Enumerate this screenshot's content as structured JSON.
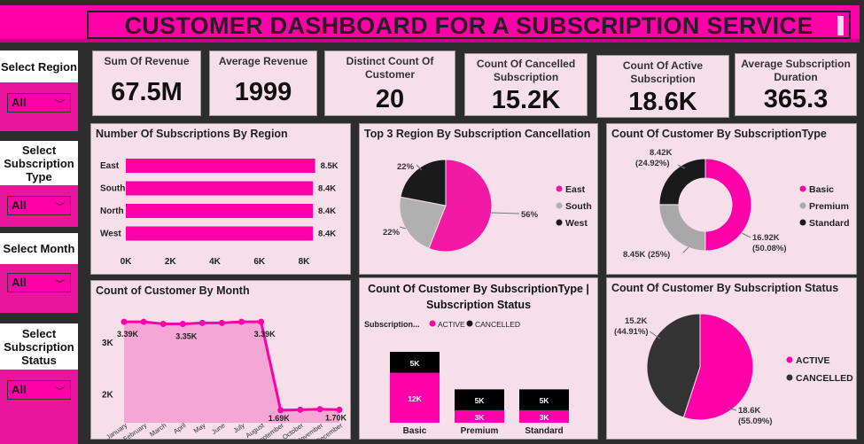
{
  "title": "CUSTOMER DASHBOARD FOR A SUBSCRIPTION SERVICE",
  "colors": {
    "pink": "#ff00a8",
    "gray": "#b0b0b0",
    "black": "#1a1a1a",
    "panel": "#f6dfe9",
    "dark": "#2d2d2d"
  },
  "slicers": [
    {
      "label": "Select Region",
      "value": "All"
    },
    {
      "label": "Select Subscription Type",
      "value": "All"
    },
    {
      "label": "Select Month",
      "value": "All"
    },
    {
      "label": "Select Subscription Status",
      "value": "All"
    }
  ],
  "kpis": [
    {
      "label": "Sum Of Revenue",
      "value": "67.5M"
    },
    {
      "label": "Average Revenue",
      "value": "1999"
    },
    {
      "label": "Distinct Count Of Customer",
      "value": "20"
    },
    {
      "label": "Count Of Cancelled Subscription",
      "value": "15.2K"
    },
    {
      "label": "Count Of Active Subscription",
      "value": "18.6K"
    },
    {
      "label": "Average Subscription Duration",
      "value": "365.3"
    }
  ],
  "chart_data": [
    {
      "type": "bar",
      "orientation": "horizontal",
      "title": "Number Of Subscriptions By Region",
      "categories": [
        "East",
        "South",
        "North",
        "West"
      ],
      "values": [
        8500,
        8400,
        8400,
        8400
      ],
      "data_labels": [
        "8.5K",
        "8.4K",
        "8.4K",
        "8.4K"
      ],
      "xlim": [
        0,
        8000
      ],
      "ticks": [
        0,
        2000,
        4000,
        6000,
        8000
      ],
      "tick_labels": [
        "0K",
        "2K",
        "4K",
        "6K",
        "8K"
      ]
    },
    {
      "type": "pie",
      "title": "Top 3 Region By Subscription Cancellation",
      "labels": [
        "East",
        "South",
        "West"
      ],
      "values": [
        56,
        22,
        22
      ],
      "data_labels": [
        "56%",
        "22%",
        "22%"
      ],
      "legend": "right"
    },
    {
      "type": "pie",
      "donut": true,
      "title": "Count Of Customer By SubscriptionType",
      "labels": [
        "Basic",
        "Premium",
        "Standard"
      ],
      "values": [
        16920,
        8450,
        8420
      ],
      "data_labels": [
        "16.92K (50.08%)",
        "8.45K (25%)",
        "8.42K (24.92%)"
      ],
      "legend": "right"
    },
    {
      "type": "area",
      "title": "Count of Customer By Month",
      "categories": [
        "January",
        "February",
        "March",
        "April",
        "May",
        "June",
        "July",
        "August",
        "September",
        "October",
        "November",
        "December"
      ],
      "values": [
        3390,
        3390,
        3350,
        3350,
        3370,
        3370,
        3390,
        3390,
        1690,
        1700,
        1710,
        1700
      ],
      "data_labels": {
        "0": "3.39K",
        "3": "3.35K",
        "7": "3.39K",
        "8": "1.69K",
        "11": "1.70K"
      },
      "ylim": [
        1450,
        3700
      ],
      "ticks": [
        2000,
        3000
      ],
      "tick_labels": [
        "2K",
        "3K"
      ]
    },
    {
      "type": "bar",
      "stacked": true,
      "title": "Count Of Customer By SubscriptionType | Subscription Status",
      "legend_title": "Subscription...",
      "legend": "top-left",
      "categories": [
        "Basic",
        "Premium",
        "Standard"
      ],
      "series": [
        {
          "name": "ACTIVE",
          "values": [
            12000,
            3000,
            3000
          ],
          "labels": [
            "12K",
            "3K",
            "3K"
          ]
        },
        {
          "name": "CANCELLED",
          "values": [
            5000,
            5000,
            5000
          ],
          "labels": [
            "5K",
            "5K",
            "5K"
          ]
        }
      ]
    },
    {
      "type": "pie",
      "title": "Count Of Customer By Subscription Status",
      "labels": [
        "ACTIVE",
        "CANCELLED"
      ],
      "values": [
        18600,
        15200
      ],
      "data_labels": [
        "18.6K (55.09%)",
        "15.2K (44.91%)"
      ],
      "legend": "right"
    }
  ]
}
